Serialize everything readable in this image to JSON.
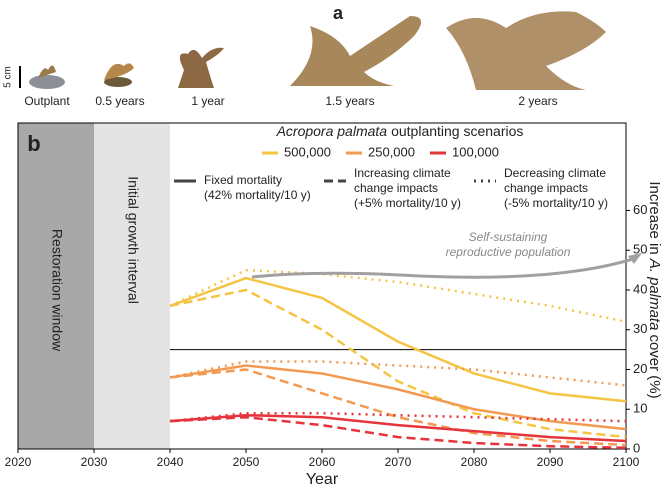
{
  "panel_a": {
    "label": "a",
    "scale": "5 cm",
    "stages": [
      "Outplant",
      "0.5 years",
      "1 year",
      "1.5 years",
      "2 years"
    ]
  },
  "chart_data": {
    "type": "line",
    "panel_label": "b",
    "legend_title_italic": "Acropora palmata",
    "legend_title": "outplanting scenarios",
    "ylabel": [
      "Increase in",
      "A. palmata",
      "cover (%)"
    ],
    "xlabel": "Year",
    "regions": [
      {
        "label": "Restoration window",
        "x": [
          2020,
          2030
        ],
        "color": "#a8a8a8"
      },
      {
        "label": "Initial growth interval",
        "x": [
          2030,
          2040
        ],
        "color": "#e4e4e4"
      }
    ],
    "scenarios": [
      {
        "lines": [
          "Fixed mortality",
          "(42% mortality/10 y)"
        ],
        "dash": "solid"
      },
      {
        "lines": [
          "Increasing climate",
          "change impacts",
          "(+5% mortality/10 y)"
        ],
        "dash": "dashed"
      },
      {
        "lines": [
          "Decreasing climate",
          "change impacts",
          "(-5% mortality/10 y)"
        ],
        "dash": "dotted"
      }
    ],
    "annotation": [
      "Self-sustaining",
      "reproductive population"
    ],
    "threshold": 25,
    "x": [
      2040,
      2050,
      2060,
      2070,
      2080,
      2090,
      2100
    ],
    "groups": [
      {
        "name": "500,000",
        "color": "#f5c443",
        "series": [
          [
            36,
            43,
            38,
            27,
            19,
            14,
            12
          ],
          [
            36,
            40,
            30,
            17,
            9,
            5,
            3
          ],
          [
            36,
            45,
            44,
            42,
            39,
            36,
            32
          ]
        ]
      },
      {
        "name": "250,000",
        "color": "#f39a52",
        "series": [
          [
            18,
            21,
            19,
            15,
            10,
            7,
            5
          ],
          [
            18,
            20,
            14,
            8,
            4,
            2,
            1
          ],
          [
            18,
            22,
            22,
            21,
            20,
            18,
            16
          ]
        ]
      },
      {
        "name": "100,000",
        "color": "#e5343c",
        "series": [
          [
            7,
            8.5,
            8,
            6,
            4.5,
            3,
            2
          ],
          [
            7,
            8,
            6,
            3,
            1.5,
            0.7,
            0.3
          ],
          [
            7,
            9,
            9,
            8.5,
            8,
            7.5,
            7
          ]
        ]
      }
    ],
    "xlim": [
      2020,
      2100
    ],
    "xticks": [
      2020,
      2030,
      2040,
      2050,
      2060,
      2070,
      2080,
      2090,
      2100
    ],
    "ylim": [
      0,
      82
    ],
    "yticks": [
      0,
      10,
      20,
      30,
      40,
      50,
      60
    ]
  }
}
